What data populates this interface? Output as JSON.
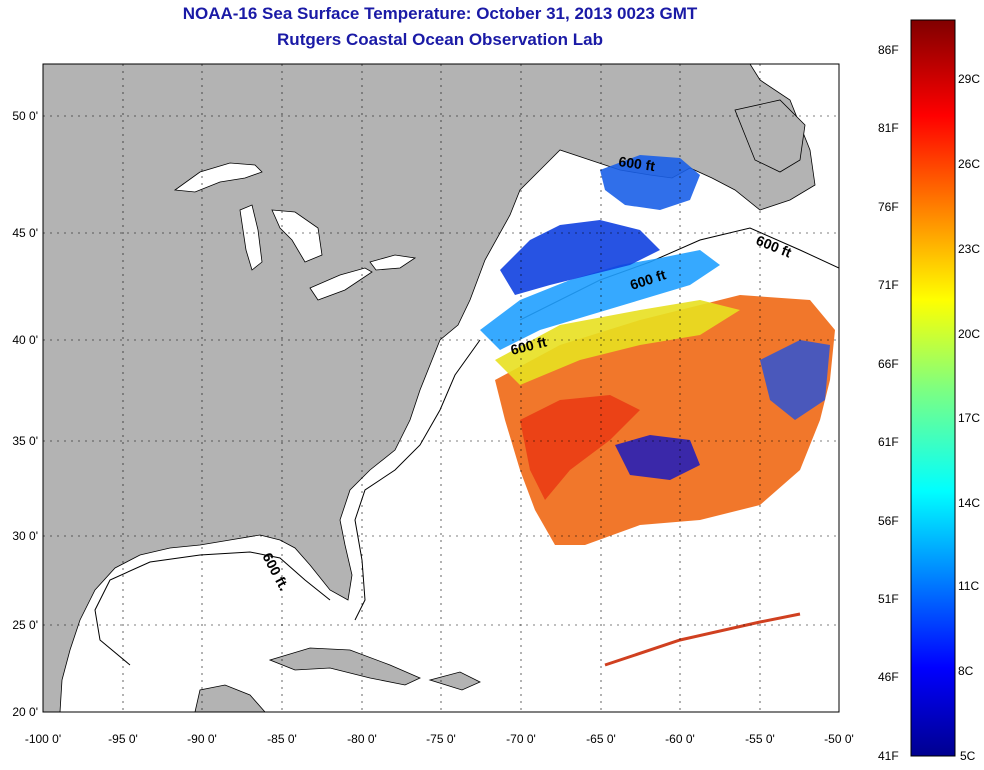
{
  "header": {
    "title": "NOAA-16 Sea Surface Temperature:  October 31, 2013 0023 GMT",
    "subtitle": "Rutgers Coastal Ocean Observation Lab"
  },
  "map": {
    "lon_ticks": [
      "-100 0'",
      "-95 0'",
      "-90 0'",
      "-85 0'",
      "-80 0'",
      "-75 0'",
      "-70 0'",
      "-65 0'",
      "-60 0'",
      "-55 0'",
      "-50 0'"
    ],
    "lat_ticks": [
      "50 0'",
      "45 0'",
      "40 0'",
      "35 0'",
      "30 0'",
      "25 0'",
      "20 0'"
    ],
    "contour_labels": [
      "600 ft",
      "600 ft",
      "600 ft",
      "600 ft",
      "600 ft."
    ],
    "land_color": "#b3b3b3",
    "ocean_color": "#ffffff"
  },
  "colorbar": {
    "fahrenheit": [
      "86F",
      "81F",
      "76F",
      "71F",
      "66F",
      "61F",
      "56F",
      "51F",
      "46F",
      "41F"
    ],
    "celsius": [
      "29C",
      "26C",
      "23C",
      "20C",
      "17C",
      "14C",
      "11C",
      "8C",
      "5C"
    ]
  }
}
